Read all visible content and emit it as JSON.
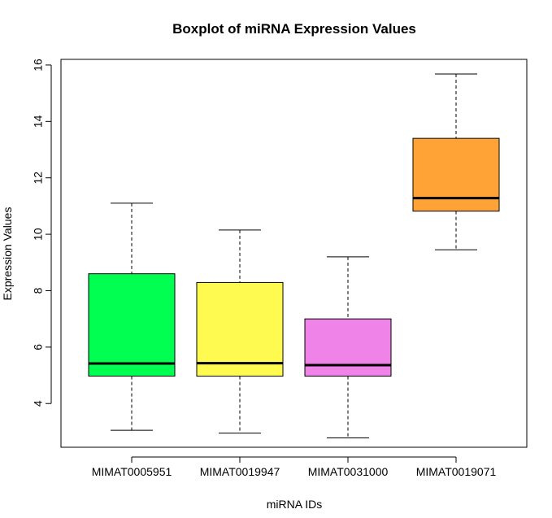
{
  "chart_data": {
    "type": "boxplot",
    "title": "Boxplot of miRNA Expression Values",
    "xlabel": "miRNA IDs",
    "ylabel": "Expression Values",
    "categories": [
      "MIMAT0005951",
      "MIMAT0019947",
      "MIMAT0031000",
      "MIMAT0019071"
    ],
    "boxes": [
      {
        "category": "MIMAT0005951",
        "whisker_low": 3.05,
        "q1": 4.97,
        "median": 5.42,
        "q3": 8.6,
        "whisker_high": 11.1,
        "color": "#00ff50"
      },
      {
        "category": "MIMAT0019947",
        "whisker_low": 2.95,
        "q1": 4.97,
        "median": 5.43,
        "q3": 8.29,
        "whisker_high": 10.15,
        "color": "#fffa50"
      },
      {
        "category": "MIMAT0031000",
        "whisker_low": 2.78,
        "q1": 4.97,
        "median": 5.36,
        "q3": 7.0,
        "whisker_high": 9.2,
        "color": "#f083e8"
      },
      {
        "category": "MIMAT0019071",
        "whisker_low": 9.45,
        "q1": 10.82,
        "median": 11.28,
        "q3": 13.4,
        "whisker_high": 15.68,
        "color": "#ffa337"
      }
    ],
    "y_ticks": [
      4,
      6,
      8,
      10,
      12,
      14,
      16
    ],
    "ylim": [
      2.45,
      16.2
    ],
    "grid": false,
    "legend": "none"
  }
}
